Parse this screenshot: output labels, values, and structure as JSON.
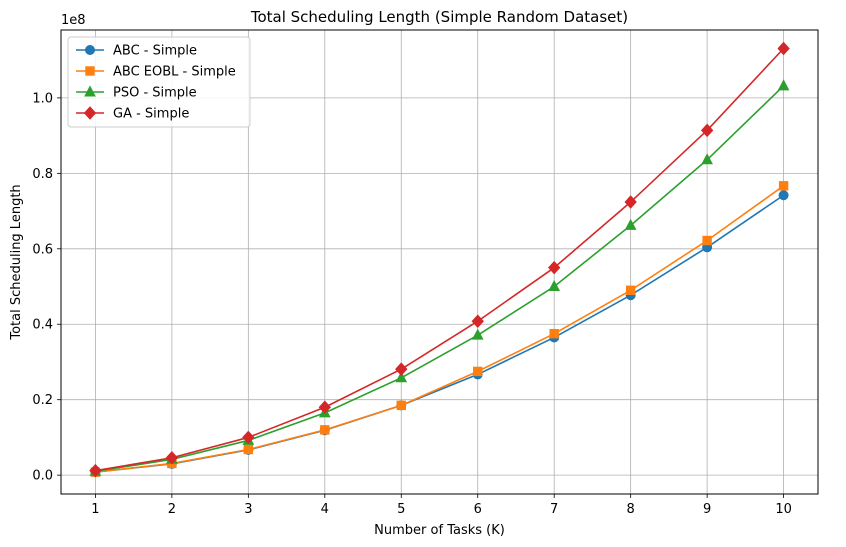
{
  "chart_data": {
    "type": "line",
    "title": "Total Scheduling Length (Simple Random Dataset)",
    "xlabel": "Number of Tasks (K)",
    "ylabel": "Total Scheduling Length",
    "y_offset_label": "1e8",
    "x": [
      1,
      2,
      3,
      4,
      5,
      6,
      7,
      8,
      9,
      10
    ],
    "x_tick_labels": [
      "1",
      "2",
      "3",
      "4",
      "5",
      "6",
      "7",
      "8",
      "9",
      "10"
    ],
    "xlim": [
      0.55,
      10.45
    ],
    "ylim": [
      -0.05,
      1.18
    ],
    "y_ticks": [
      0.0,
      0.2,
      0.4,
      0.6,
      0.8,
      1.0
    ],
    "y_tick_labels": [
      "0.0",
      "0.2",
      "0.4",
      "0.6",
      "0.8",
      "1.0"
    ],
    "y_unit_multiplier": 100000000,
    "grid": true,
    "legend_position": "upper-left",
    "series": [
      {
        "name": "ABC - Simple",
        "color": "#1f77b4",
        "marker": "circle",
        "values": [
          0.008,
          0.03,
          0.067,
          0.119,
          0.185,
          0.267,
          0.365,
          0.477,
          0.604,
          0.742
        ]
      },
      {
        "name": "ABC EOBL - Simple",
        "color": "#ff7f0e",
        "marker": "square",
        "values": [
          0.008,
          0.031,
          0.068,
          0.12,
          0.185,
          0.275,
          0.375,
          0.49,
          0.622,
          0.767
        ]
      },
      {
        "name": "PSO - Simple",
        "color": "#2ca02c",
        "marker": "triangle",
        "values": [
          0.01,
          0.042,
          0.092,
          0.165,
          0.258,
          0.371,
          0.5,
          0.662,
          0.836,
          1.032
        ]
      },
      {
        "name": "GA - Simple",
        "color": "#d62728",
        "marker": "diamond",
        "values": [
          0.012,
          0.046,
          0.1,
          0.18,
          0.281,
          0.408,
          0.55,
          0.724,
          0.914,
          1.131
        ]
      }
    ]
  }
}
